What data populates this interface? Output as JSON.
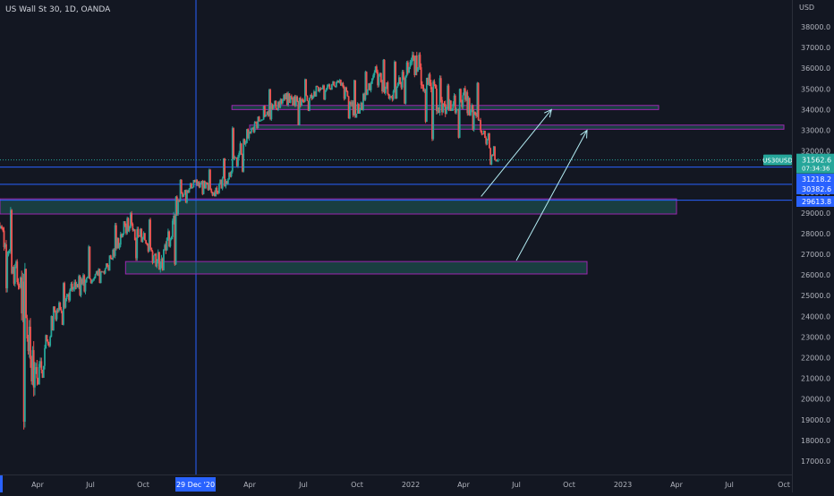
{
  "legend": {
    "symbol": "US Wall St 30",
    "interval": "1D",
    "exchange": "OANDA",
    "separator": ", "
  },
  "price_axis": {
    "currency": "USD",
    "ticks": [
      "38000.0",
      "37000.0",
      "36000.0",
      "35000.0",
      "34000.0",
      "33000.0",
      "32000.0",
      "30000.0",
      "29000.0",
      "28000.0",
      "27000.0",
      "26000.0",
      "25000.0",
      "24000.0",
      "23000.0",
      "22000.0",
      "21000.0",
      "20000.0",
      "19000.0",
      "18000.0",
      "17000.0"
    ]
  },
  "time_axis": {
    "ticks": [
      "Apr",
      "Jul",
      "Oct",
      "Apr",
      "Jul",
      "Oct",
      "2022",
      "Apr",
      "Jul",
      "Oct",
      "2023",
      "Apr",
      "Jul",
      "Oct"
    ],
    "crosshair_date": "29 Dec '20"
  },
  "price_labels": {
    "current_symbol": "US30USD",
    "current_price": "31562.6",
    "countdown": "07:34:36",
    "level_1": "31218.2",
    "level_2": "30382.6",
    "level_3": "29613.8"
  },
  "colors": {
    "background": "#131722",
    "up": "#26a69a",
    "down": "#ef5350",
    "zone_fill": "#1f5f5b",
    "zone_border": "#9c27b0",
    "hline": "#2962ff",
    "crosshair": "#2962ff",
    "arrow": "#b2ebf2",
    "current_label": "#26a69a"
  },
  "drawings": {
    "zones": [
      {
        "name": "resistance-zone-upper",
        "from": "2021-03",
        "to": "2023-03",
        "low": 34000,
        "high": 34200
      },
      {
        "name": "resistance-zone-lower",
        "from": "2021-04",
        "to": "2023-10",
        "low": 33050,
        "high": 33250
      },
      {
        "name": "support-zone-29600",
        "from": "2020-01",
        "to": "2023-04",
        "low": 28950,
        "high": 29680
      },
      {
        "name": "support-zone-26000",
        "from": "2020-09",
        "to": "2022-11",
        "low": 26050,
        "high": 26650
      }
    ],
    "horizontal_lines": [
      31562.6,
      31218.2,
      30382.6,
      29613.8
    ],
    "arrows": [
      {
        "name": "projection-arrow-short",
        "from_date": "2022-05",
        "from_price": 29800,
        "to_date": "2022-09",
        "to_price": 34000
      },
      {
        "name": "projection-arrow-long",
        "from_date": "2022-07",
        "from_price": 26700,
        "to_date": "2022-11",
        "to_price": 33000
      }
    ]
  },
  "chart_data": {
    "type": "candlestick",
    "title": "US Wall St 30, 1D, OANDA",
    "ylabel": "USD",
    "ylim": [
      16500,
      38800
    ],
    "x": [
      "2020-01",
      "2020-02",
      "2020-03",
      "2020-04",
      "2020-05",
      "2020-06",
      "2020-07",
      "2020-08",
      "2020-09",
      "2020-10",
      "2020-11",
      "2020-12",
      "2021-01",
      "2021-02",
      "2021-03",
      "2021-04",
      "2021-05",
      "2021-06",
      "2021-07",
      "2021-08",
      "2021-09",
      "2021-10",
      "2021-11",
      "2021-12",
      "2022-01",
      "2022-02",
      "2022-03",
      "2022-04",
      "2022-05"
    ],
    "close": [
      28250,
      25400,
      21000,
      24200,
      25300,
      25800,
      26400,
      28400,
      27800,
      26500,
      29600,
      30600,
      30000,
      31000,
      32900,
      33900,
      34500,
      34400,
      35000,
      35300,
      33800,
      35800,
      34500,
      36300,
      35200,
      33800,
      34700,
      33000,
      31560
    ],
    "high": [
      29600,
      29500,
      27000,
      24800,
      25800,
      27600,
      26900,
      28600,
      29200,
      28900,
      30100,
      30700,
      31200,
      31800,
      33300,
      34300,
      35100,
      34900,
      35600,
      35600,
      35600,
      36000,
      36600,
      36500,
      36960,
      35800,
      35400,
      35500,
      33000
    ],
    "low": [
      28200,
      25000,
      18200,
      20700,
      23400,
      24800,
      25500,
      26200,
      26600,
      26100,
      26200,
      29400,
      29800,
      29800,
      30800,
      32800,
      33400,
      33100,
      33800,
      34400,
      33400,
      33800,
      34100,
      34100,
      33100,
      32300,
      32400,
      32800,
      31200
    ]
  }
}
